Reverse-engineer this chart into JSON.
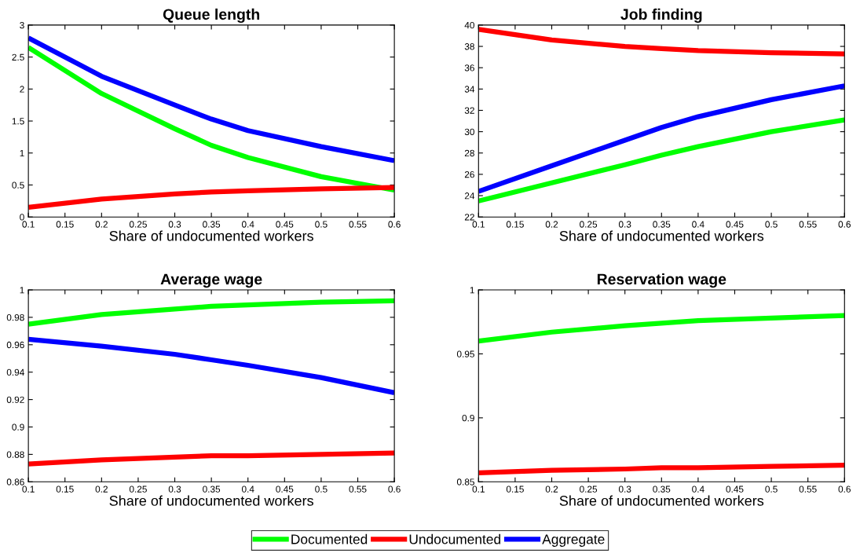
{
  "chart_data": [
    {
      "type": "line",
      "title": "Queue length",
      "xlabel": "Share of undocumented workers",
      "x": [
        0.1,
        0.2,
        0.3,
        0.35,
        0.4,
        0.5,
        0.6
      ],
      "xlim": [
        0.1,
        0.6
      ],
      "xticks": [
        0.1,
        0.15,
        0.2,
        0.25,
        0.3,
        0.35,
        0.4,
        0.45,
        0.5,
        0.55,
        0.6
      ],
      "ylim": [
        0,
        3
      ],
      "yticks": [
        0,
        0.5,
        1,
        1.5,
        2,
        2.5,
        3
      ],
      "grid": false,
      "legend": "bottom",
      "series": [
        {
          "name": "Documented",
          "color": "#00ff00",
          "values": [
            2.65,
            1.93,
            1.38,
            1.12,
            0.93,
            0.63,
            0.42
          ]
        },
        {
          "name": "Undocumented",
          "color": "#ff0000",
          "values": [
            0.15,
            0.28,
            0.36,
            0.39,
            0.41,
            0.44,
            0.46
          ]
        },
        {
          "name": "Aggregate",
          "color": "#0000ff",
          "values": [
            2.8,
            2.2,
            1.75,
            1.53,
            1.35,
            1.1,
            0.88
          ]
        }
      ]
    },
    {
      "type": "line",
      "title": "Job finding",
      "xlabel": "Share of undocumented workers",
      "x": [
        0.1,
        0.2,
        0.3,
        0.35,
        0.4,
        0.5,
        0.6
      ],
      "xlim": [
        0.1,
        0.6
      ],
      "xticks": [
        0.1,
        0.15,
        0.2,
        0.25,
        0.3,
        0.35,
        0.4,
        0.45,
        0.5,
        0.55,
        0.6
      ],
      "ylim": [
        22,
        40
      ],
      "yticks": [
        22,
        24,
        26,
        28,
        30,
        32,
        34,
        36,
        38,
        40
      ],
      "grid": false,
      "legend": "bottom",
      "series": [
        {
          "name": "Documented",
          "color": "#00ff00",
          "values": [
            23.5,
            25.2,
            26.9,
            27.8,
            28.6,
            30.0,
            31.1
          ]
        },
        {
          "name": "Undocumented",
          "color": "#ff0000",
          "values": [
            39.6,
            38.6,
            38.0,
            37.8,
            37.6,
            37.4,
            37.3
          ]
        },
        {
          "name": "Aggregate",
          "color": "#0000ff",
          "values": [
            24.4,
            26.8,
            29.2,
            30.4,
            31.4,
            33.0,
            34.3
          ]
        }
      ]
    },
    {
      "type": "line",
      "title": "Average wage",
      "xlabel": "Share of undocumented workers",
      "x": [
        0.1,
        0.2,
        0.3,
        0.35,
        0.4,
        0.5,
        0.6
      ],
      "xlim": [
        0.1,
        0.6
      ],
      "xticks": [
        0.1,
        0.15,
        0.2,
        0.25,
        0.3,
        0.35,
        0.4,
        0.45,
        0.5,
        0.55,
        0.6
      ],
      "ylim": [
        0.86,
        1
      ],
      "yticks": [
        0.86,
        0.88,
        0.9,
        0.92,
        0.94,
        0.96,
        0.98,
        1
      ],
      "grid": false,
      "legend": "bottom",
      "series": [
        {
          "name": "Documented",
          "color": "#00ff00",
          "values": [
            0.975,
            0.982,
            0.986,
            0.988,
            0.989,
            0.991,
            0.992
          ]
        },
        {
          "name": "Undocumented",
          "color": "#ff0000",
          "values": [
            0.873,
            0.876,
            0.878,
            0.879,
            0.879,
            0.88,
            0.881
          ]
        },
        {
          "name": "Aggregate",
          "color": "#0000ff",
          "values": [
            0.964,
            0.959,
            0.953,
            0.949,
            0.945,
            0.936,
            0.925
          ]
        }
      ]
    },
    {
      "type": "line",
      "title": "Reservation wage",
      "xlabel": "Share of undocumented workers",
      "x": [
        0.1,
        0.2,
        0.3,
        0.35,
        0.4,
        0.5,
        0.6
      ],
      "xlim": [
        0.1,
        0.6
      ],
      "xticks": [
        0.1,
        0.15,
        0.2,
        0.25,
        0.3,
        0.35,
        0.4,
        0.45,
        0.5,
        0.55,
        0.6
      ],
      "ylim": [
        0.85,
        1
      ],
      "yticks": [
        0.85,
        0.9,
        0.95,
        1
      ],
      "grid": false,
      "legend": "bottom",
      "series": [
        {
          "name": "Documented",
          "color": "#00ff00",
          "values": [
            0.96,
            0.967,
            0.972,
            0.974,
            0.976,
            0.978,
            0.98
          ]
        },
        {
          "name": "Undocumented",
          "color": "#ff0000",
          "values": [
            0.857,
            0.859,
            0.86,
            0.861,
            0.861,
            0.862,
            0.863
          ]
        }
      ]
    }
  ]
}
